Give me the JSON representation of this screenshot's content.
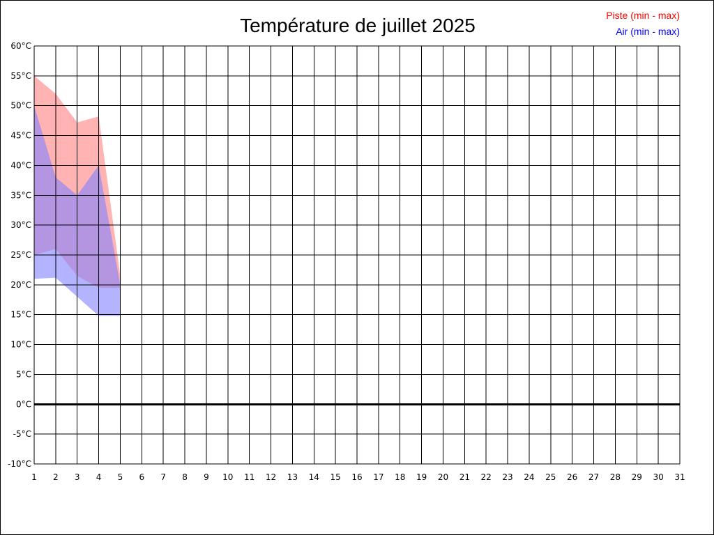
{
  "chart_data": {
    "type": "area",
    "title": "Température de juillet 2025",
    "x": [
      1,
      2,
      3,
      4,
      5
    ],
    "xlim": [
      1,
      31
    ],
    "x_ticks": [
      "1",
      "2",
      "3",
      "4",
      "5",
      "6",
      "7",
      "8",
      "9",
      "10",
      "11",
      "12",
      "13",
      "14",
      "15",
      "16",
      "17",
      "18",
      "19",
      "20",
      "21",
      "22",
      "23",
      "24",
      "25",
      "26",
      "27",
      "28",
      "29",
      "30",
      "31"
    ],
    "ylim": [
      -10,
      60
    ],
    "y_ticks": [
      "60°C",
      "55°C",
      "50°C",
      "45°C",
      "40°C",
      "35°C",
      "30°C",
      "25°C",
      "20°C",
      "15°C",
      "10°C",
      "5°C",
      "0°C",
      "-5°C",
      "-10°C"
    ],
    "y_tick_values": [
      60,
      55,
      50,
      45,
      40,
      35,
      30,
      25,
      20,
      15,
      10,
      5,
      0,
      -5,
      -10
    ],
    "grid": true,
    "legend_position": "top-right",
    "series": [
      {
        "name": "Piste (min - max)",
        "color": "#ff0000",
        "fill": "#ff8080",
        "min": [
          25,
          26,
          21.5,
          19.5,
          19.5
        ],
        "max": [
          55,
          52,
          47.2,
          48.2,
          21.5
        ]
      },
      {
        "name": "Air (min - max)",
        "color": "#0000ff",
        "fill": "#8080ff",
        "min": [
          21,
          21.2,
          18,
          14.8,
          14.8
        ],
        "max": [
          50,
          38,
          35,
          40,
          20
        ]
      }
    ]
  }
}
